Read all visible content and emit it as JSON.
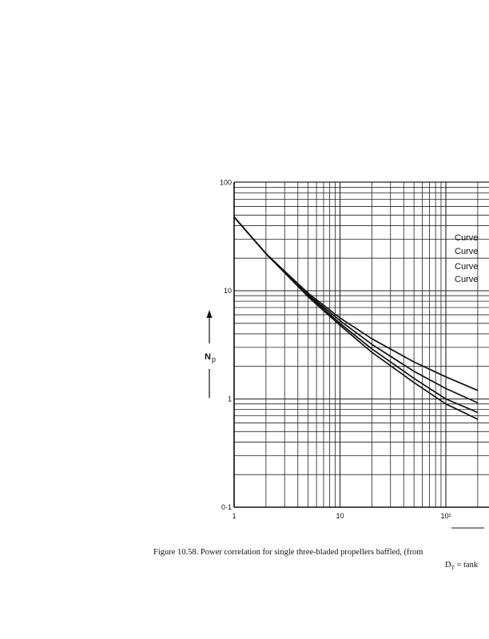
{
  "chart_data": {
    "type": "line",
    "x_scale": "log",
    "y_scale": "log",
    "xlim": [
      1,
      200
    ],
    "ylim": [
      0.1,
      100
    ],
    "xticks": [
      "1",
      "10",
      "10²"
    ],
    "yticks": [
      "100",
      "10",
      "1",
      "0·1"
    ],
    "ylabel": "N",
    "ylabel_sub": "p",
    "grid": true,
    "legend_position": "right",
    "legend": [
      "Curve",
      "Curve",
      "Curve",
      "Curve"
    ],
    "series": [
      {
        "x": [
          1,
          2,
          5,
          10,
          20,
          50,
          100,
          200
        ],
        "y": [
          48,
          22,
          9.5,
          5.6,
          3.6,
          2.2,
          1.6,
          1.2
        ]
      },
      {
        "x": [
          1,
          2,
          5,
          10,
          20,
          50,
          100,
          200
        ],
        "y": [
          48,
          22,
          9.2,
          5.3,
          3.2,
          1.8,
          1.25,
          0.92
        ]
      },
      {
        "x": [
          1,
          2,
          5,
          10,
          20,
          50,
          100,
          200
        ],
        "y": [
          48,
          22,
          9.0,
          5.0,
          2.9,
          1.55,
          1.0,
          0.75
        ]
      },
      {
        "x": [
          1,
          2,
          5,
          10,
          20,
          50,
          100,
          200
        ],
        "y": [
          48,
          22,
          8.8,
          4.8,
          2.7,
          1.42,
          0.9,
          0.65
        ]
      }
    ]
  },
  "caption": {
    "line1": "Figure 10.58.   Power correlation for single three-bladed propellers baffled, (from",
    "line2_prefix": "D",
    "line2_sub": "T",
    "line2_suffix": " = tank"
  },
  "colors": {
    "ink": "#111111",
    "grid": "#222222",
    "background": "#ffffff"
  }
}
